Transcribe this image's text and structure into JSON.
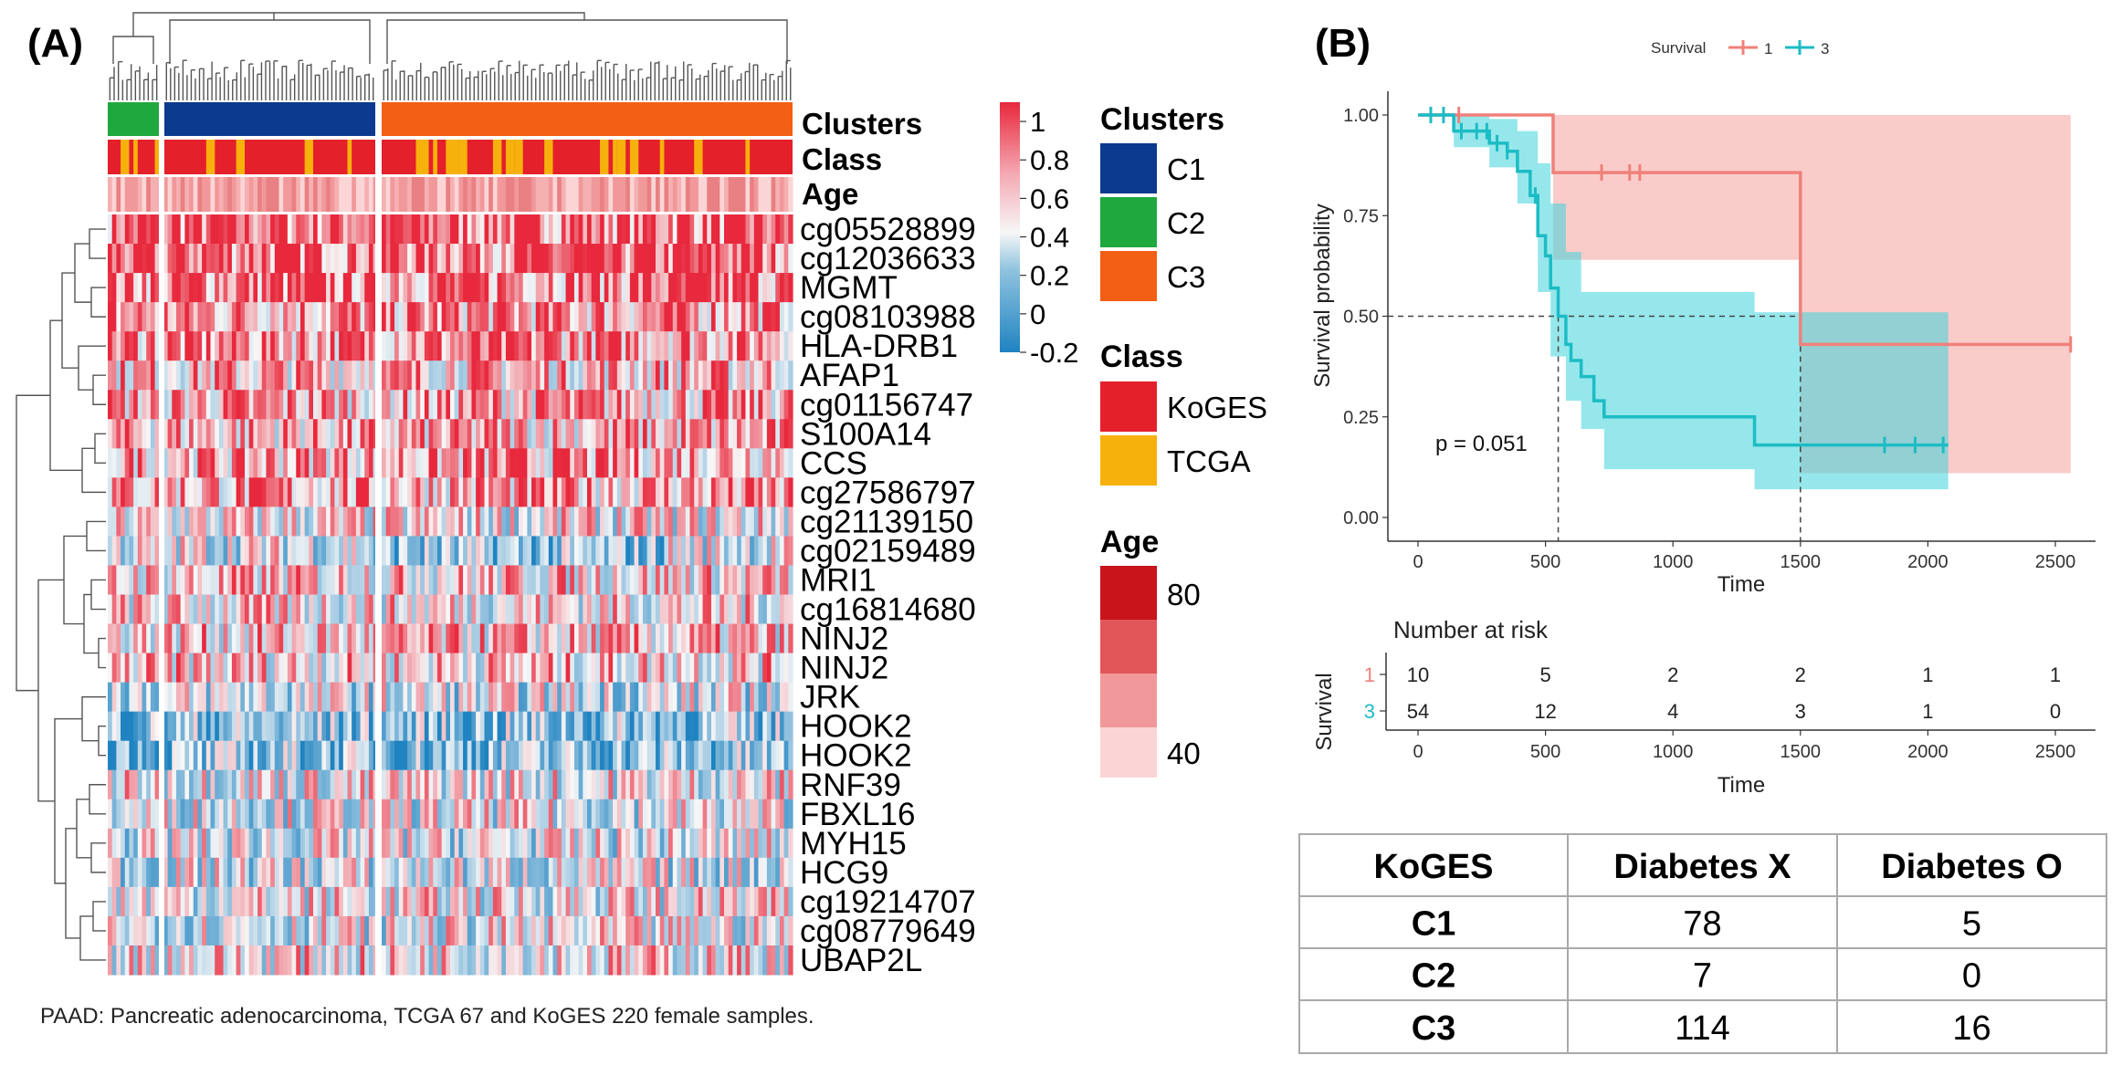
{
  "caption": "PAAD: Pancreatic adenocarcinoma, TCGA 67 and KoGES 220 female samples.",
  "chart_data": [
    {
      "type": "heatmap",
      "panel_label": "(A)",
      "row_labels": [
        "cg05528899",
        "cg12036633",
        "MGMT",
        "cg08103988",
        "HLA-DRB1",
        "AFAP1",
        "cg01156747",
        "S100A14",
        "CCS",
        "cg27586797",
        "cg21139150",
        "cg02159489",
        "MRI1",
        "cg16814680",
        "NINJ2",
        "NINJ2",
        "JRK",
        "HOOK2",
        "HOOK2",
        "RNF39",
        "FBXL16",
        "MYH15",
        "HCG9",
        "cg19214707",
        "cg08779649",
        "UBAP2L"
      ],
      "annotation_tracks": [
        "Clusters",
        "Class",
        "Age"
      ],
      "color_scale": {
        "title": "",
        "ticks": [
          "1",
          "0.8",
          "0.6",
          "0.4",
          "0.2",
          "0",
          "-0.2"
        ],
        "low": "#1f83c1",
        "mid": "#f7f7f7",
        "high": "#e8283c"
      },
      "legends": {
        "clusters": {
          "title": "Clusters",
          "items": [
            {
              "label": "C1",
              "color": "#0b3a8f"
            },
            {
              "label": "C2",
              "color": "#1fa83e"
            },
            {
              "label": "C3",
              "color": "#f35f14"
            }
          ]
        },
        "class": {
          "title": "Class",
          "items": [
            {
              "label": "KoGES",
              "color": "#e4202a"
            },
            {
              "label": "TCGA",
              "color": "#f7b10c"
            }
          ]
        },
        "age": {
          "title": "Age",
          "ticks": [
            "80",
            "40"
          ],
          "colors": [
            "#c9141c",
            "#e2565a",
            "#f1989a",
            "#fbd5d6"
          ]
        }
      }
    },
    {
      "type": "line",
      "panel_label": "(B)",
      "legend_title": "Survival",
      "xlabel": "Time",
      "ylabel": "Survival probability",
      "xlim": [
        0,
        2600
      ],
      "ylim": [
        0,
        1
      ],
      "xticks": [
        "0",
        "500",
        "1000",
        "1500",
        "2000",
        "2500"
      ],
      "yticks": [
        "0.00",
        "0.25",
        "0.50",
        "0.75",
        "1.00"
      ],
      "annotation": "p = 0.051",
      "series": [
        {
          "name": "1",
          "color": "#f0807a",
          "steps": [
            [
              0,
              1.0
            ],
            [
              530,
              0.857
            ],
            [
              1500,
              0.857
            ],
            [
              1500,
              0.43
            ],
            [
              2560,
              0.43
            ]
          ],
          "ci": [
            [
              0,
              1.0,
              1.0
            ],
            [
              530,
              1.0,
              0.64
            ],
            [
              1500,
              1.0,
              0.64
            ],
            [
              1500,
              1.0,
              0.11
            ],
            [
              2560,
              1.0,
              0.11
            ]
          ],
          "censor": [
            160,
            720,
            830,
            870,
            2560
          ]
        },
        {
          "name": "3",
          "color": "#1cbcc5",
          "steps": [
            [
              0,
              1.0
            ],
            [
              140,
              0.96
            ],
            [
              280,
              0.93
            ],
            [
              350,
              0.91
            ],
            [
              390,
              0.86
            ],
            [
              440,
              0.8
            ],
            [
              470,
              0.7
            ],
            [
              500,
              0.65
            ],
            [
              520,
              0.57
            ],
            [
              550,
              0.5
            ],
            [
              580,
              0.43
            ],
            [
              600,
              0.39
            ],
            [
              640,
              0.35
            ],
            [
              690,
              0.29
            ],
            [
              730,
              0.25
            ],
            [
              1320,
              0.25
            ],
            [
              1320,
              0.18
            ],
            [
              2080,
              0.18
            ]
          ],
          "ci": [
            [
              0,
              1.0,
              1.0
            ],
            [
              140,
              1.0,
              0.92
            ],
            [
              280,
              0.99,
              0.87
            ],
            [
              390,
              0.96,
              0.78
            ],
            [
              470,
              0.88,
              0.56
            ],
            [
              520,
              0.78,
              0.4
            ],
            [
              580,
              0.66,
              0.29
            ],
            [
              640,
              0.56,
              0.22
            ],
            [
              730,
              0.56,
              0.12
            ],
            [
              1320,
              0.51,
              0.07
            ],
            [
              2080,
              0.51,
              0.07
            ]
          ],
          "censor": [
            50,
            100,
            170,
            230,
            270,
            310,
            350,
            460,
            1830,
            1950,
            2060
          ]
        }
      ]
    },
    {
      "type": "table",
      "title": "Number at risk",
      "ylabel": "Survival",
      "xlabel": "Time",
      "xticks": [
        "0",
        "500",
        "1000",
        "1500",
        "2000",
        "2500"
      ],
      "rows": [
        {
          "group": "1",
          "color": "#f0807a",
          "values": [
            "10",
            "5",
            "2",
            "2",
            "1",
            "1"
          ]
        },
        {
          "group": "3",
          "color": "#1cbcc5",
          "values": [
            "54",
            "12",
            "4",
            "3",
            "1",
            "0"
          ]
        }
      ]
    },
    {
      "type": "table",
      "columns": [
        "KoGES",
        "Diabetes X",
        "Diabetes O"
      ],
      "rows": [
        [
          "C1",
          "78",
          "5"
        ],
        [
          "C2",
          "7",
          "0"
        ],
        [
          "C3",
          "114",
          "16"
        ]
      ]
    }
  ]
}
